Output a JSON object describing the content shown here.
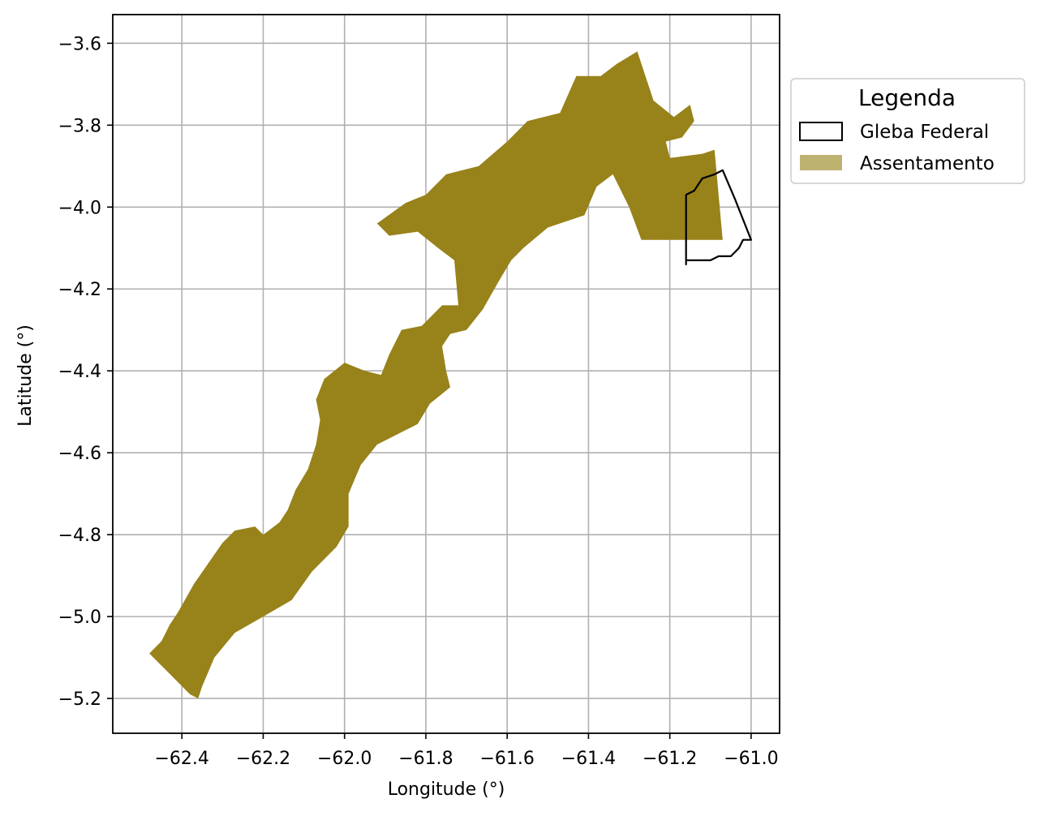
{
  "map": {
    "type": "geographic-map",
    "xlabel": "Longitude (°)",
    "ylabel": "Latitude (°)",
    "xlim": [
      -62.57,
      -60.93
    ],
    "ylim": [
      -5.285,
      -3.53
    ],
    "xticks": [
      -62.4,
      -62.2,
      -62.0,
      -61.8,
      -61.6,
      -61.4,
      -61.2,
      -61.0
    ],
    "yticks": [
      -3.6,
      -3.8,
      -4.0,
      -4.2,
      -4.4,
      -4.6,
      -4.8,
      -5.0,
      -5.2
    ],
    "xtick_labels": [
      "−62.4",
      "−62.2",
      "−62.0",
      "−61.8",
      "−61.6",
      "−61.4",
      "−61.2",
      "−61.0"
    ],
    "ytick_labels": [
      "−3.6",
      "−3.8",
      "−4.0",
      "−4.2",
      "−4.4",
      "−4.6",
      "−4.8",
      "−5.0",
      "−5.2"
    ],
    "grid": true,
    "legend": {
      "title": "Legenda",
      "placement": "outside right, top",
      "items": [
        {
          "label": "Gleba Federal",
          "style": "outline",
          "color": "#000000"
        },
        {
          "label": "Assentamento",
          "style": "fill",
          "color": "#98821a"
        }
      ]
    },
    "features": {
      "assentamento": {
        "name": "Assentamento",
        "color": "#98821a",
        "coords": [
          [
            -62.48,
            -5.09
          ],
          [
            -62.45,
            -5.06
          ],
          [
            -62.43,
            -5.02
          ],
          [
            -62.41,
            -4.99
          ],
          [
            -62.37,
            -4.92
          ],
          [
            -62.3,
            -4.82
          ],
          [
            -62.27,
            -4.79
          ],
          [
            -62.22,
            -4.78
          ],
          [
            -62.2,
            -4.8
          ],
          [
            -62.16,
            -4.77
          ],
          [
            -62.14,
            -4.74
          ],
          [
            -62.12,
            -4.69
          ],
          [
            -62.09,
            -4.64
          ],
          [
            -62.07,
            -4.58
          ],
          [
            -62.06,
            -4.52
          ],
          [
            -62.07,
            -4.47
          ],
          [
            -62.05,
            -4.42
          ],
          [
            -62.0,
            -4.38
          ],
          [
            -61.95,
            -4.4
          ],
          [
            -61.91,
            -4.41
          ],
          [
            -61.89,
            -4.36
          ],
          [
            -61.86,
            -4.3
          ],
          [
            -61.81,
            -4.29
          ],
          [
            -61.78,
            -4.26
          ],
          [
            -61.76,
            -4.24
          ],
          [
            -61.72,
            -4.24
          ],
          [
            -61.73,
            -4.13
          ],
          [
            -61.77,
            -4.1
          ],
          [
            -61.82,
            -4.06
          ],
          [
            -61.89,
            -4.07
          ],
          [
            -61.92,
            -4.04
          ],
          [
            -61.85,
            -3.99
          ],
          [
            -61.8,
            -3.97
          ],
          [
            -61.75,
            -3.92
          ],
          [
            -61.67,
            -3.9
          ],
          [
            -61.6,
            -3.84
          ],
          [
            -61.55,
            -3.79
          ],
          [
            -61.47,
            -3.77
          ],
          [
            -61.43,
            -3.68
          ],
          [
            -61.37,
            -3.68
          ],
          [
            -61.33,
            -3.65
          ],
          [
            -61.28,
            -3.62
          ],
          [
            -61.26,
            -3.68
          ],
          [
            -61.24,
            -3.74
          ],
          [
            -61.19,
            -3.78
          ],
          [
            -61.15,
            -3.75
          ],
          [
            -61.14,
            -3.79
          ],
          [
            -61.17,
            -3.83
          ],
          [
            -61.21,
            -3.84
          ],
          [
            -61.2,
            -3.88
          ],
          [
            -61.12,
            -3.87
          ],
          [
            -61.09,
            -3.86
          ],
          [
            -61.07,
            -4.08
          ],
          [
            -61.27,
            -4.08
          ],
          [
            -61.3,
            -4.0
          ],
          [
            -61.34,
            -3.92
          ],
          [
            -61.38,
            -3.95
          ],
          [
            -61.41,
            -4.02
          ],
          [
            -61.5,
            -4.05
          ],
          [
            -61.56,
            -4.1
          ],
          [
            -61.59,
            -4.13
          ],
          [
            -61.62,
            -4.18
          ],
          [
            -61.66,
            -4.25
          ],
          [
            -61.7,
            -4.3
          ],
          [
            -61.74,
            -4.31
          ],
          [
            -61.76,
            -4.34
          ],
          [
            -61.75,
            -4.4
          ],
          [
            -61.74,
            -4.44
          ],
          [
            -61.79,
            -4.48
          ],
          [
            -61.82,
            -4.53
          ],
          [
            -61.86,
            -4.55
          ],
          [
            -61.92,
            -4.58
          ],
          [
            -61.96,
            -4.63
          ],
          [
            -61.99,
            -4.7
          ],
          [
            -61.99,
            -4.78
          ],
          [
            -62.02,
            -4.83
          ],
          [
            -62.08,
            -4.89
          ],
          [
            -62.13,
            -4.96
          ],
          [
            -62.2,
            -5.0
          ],
          [
            -62.27,
            -5.04
          ],
          [
            -62.32,
            -5.1
          ],
          [
            -62.35,
            -5.17
          ],
          [
            -62.36,
            -5.2
          ],
          [
            -62.38,
            -5.19
          ],
          [
            -62.43,
            -5.14
          ],
          [
            -62.48,
            -5.09
          ]
        ]
      },
      "gleba_federal": {
        "name": "Gleba Federal",
        "color": "#000000",
        "coords": [
          [
            -61.16,
            -3.97
          ],
          [
            -61.14,
            -3.96
          ],
          [
            -61.12,
            -3.93
          ],
          [
            -61.09,
            -3.92
          ],
          [
            -61.07,
            -3.91
          ],
          [
            -61.04,
            -3.98
          ],
          [
            -61.0,
            -4.08
          ],
          [
            -61.02,
            -4.08
          ],
          [
            -61.03,
            -4.1
          ],
          [
            -61.05,
            -4.12
          ],
          [
            -61.08,
            -4.12
          ],
          [
            -61.1,
            -4.13
          ],
          [
            -61.13,
            -4.13
          ],
          [
            -61.16,
            -4.13
          ],
          [
            -61.16,
            -4.14
          ],
          [
            -61.16,
            -4.0
          ],
          [
            -61.16,
            -3.97
          ]
        ]
      }
    }
  }
}
